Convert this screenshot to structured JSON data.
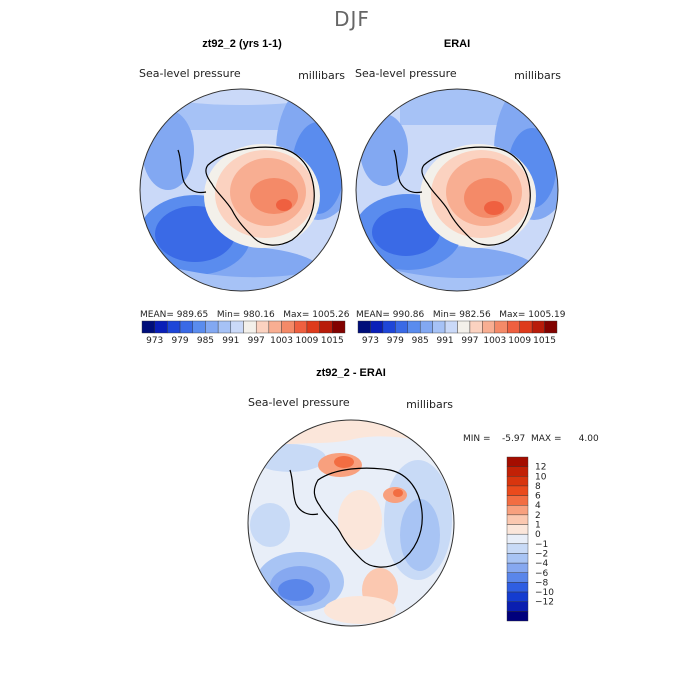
{
  "page_title": "DJF",
  "chart_data": [
    {
      "type": "heatmap",
      "title": "zt92_2 (yrs 1-1)",
      "field_label": "Sea-level pressure",
      "units": "millibars",
      "stats": {
        "mean": "989.65",
        "min": "980.16",
        "max": "1005.26"
      },
      "stats_text": "MEAN= 989.65   Min= 980.16   Max= 1005.26"
    },
    {
      "type": "heatmap",
      "title": "ERAI",
      "field_label": "Sea-level pressure",
      "units": "millibars",
      "stats": {
        "mean": "990.86",
        "min": "982.56",
        "max": "1005.19"
      },
      "stats_text": "MEAN= 990.86   Min= 982.56   Max= 1005.19"
    },
    {
      "type": "heatmap",
      "title": "zt92_2 - ERAI",
      "field_label": "Sea-level pressure",
      "units": "millibars",
      "stats": {
        "min": "-5.97",
        "max": "4.00"
      },
      "stats_text": "MIN =    -5.97  MAX =      4.00"
    }
  ],
  "colorbar_abs": {
    "ticks": [
      "973",
      "979",
      "985",
      "991",
      "997",
      "1003",
      "1009",
      "1015"
    ],
    "colors": [
      "#000e7a",
      "#0a1fb8",
      "#1e46d8",
      "#3a6ae6",
      "#5a8cee",
      "#82a8f2",
      "#a6c2f6",
      "#cad9f8",
      "#f3f0ea",
      "#fbd2c0",
      "#f8ae92",
      "#f48a68",
      "#ef6040",
      "#de3b1c",
      "#b81c0a",
      "#820200"
    ]
  },
  "colorbar_diff": {
    "ticks": [
      "12",
      "10",
      "8",
      "6",
      "4",
      "2",
      "1",
      "0",
      "−1",
      "−2",
      "−4",
      "−6",
      "−8",
      "−10",
      "−12"
    ],
    "colors": [
      "#a40d00",
      "#c22106",
      "#d8350e",
      "#ea4a1c",
      "#f26d42",
      "#f8a07e",
      "#fbc8b0",
      "#fbe6da",
      "#e8eef8",
      "#c8daf6",
      "#a8c4f4",
      "#86a8f0",
      "#5a86ea",
      "#2f5ee2",
      "#143cd0",
      "#0a1eb0",
      "#00007c"
    ]
  }
}
